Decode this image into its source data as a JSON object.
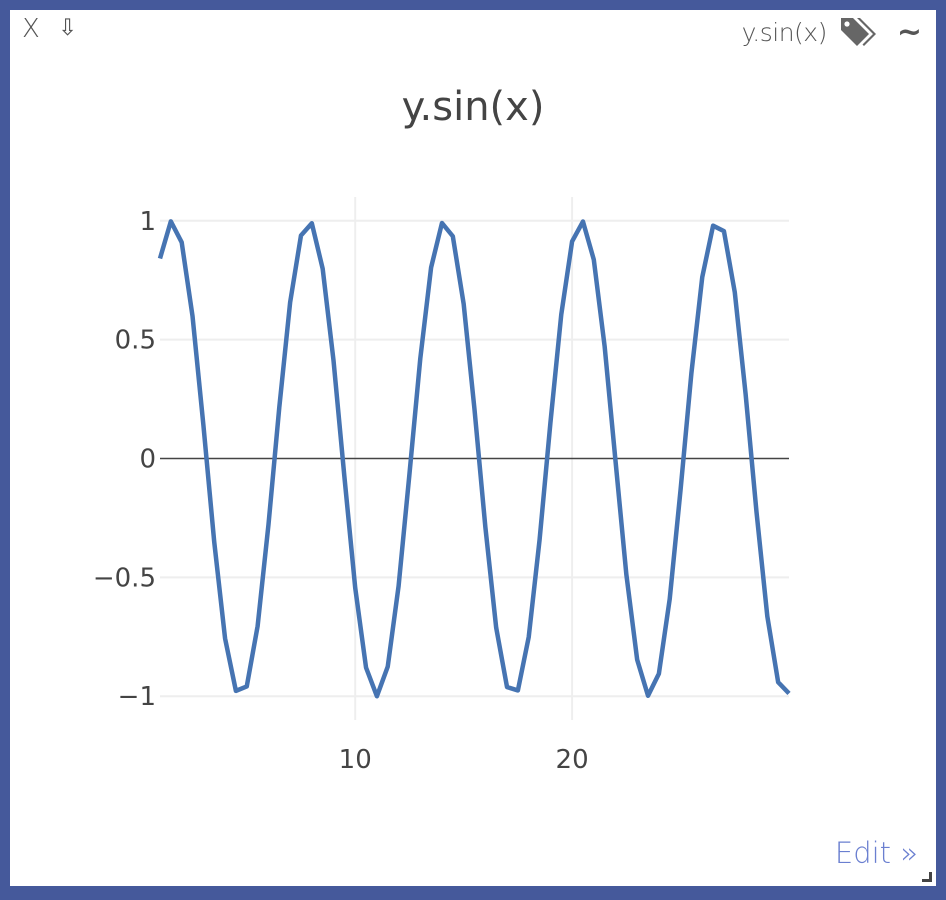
{
  "controls": {
    "close_label": "X",
    "download_label": "⇩",
    "tag_label": "y.sin(x)",
    "tag_icon": "tags-icon",
    "wave_label": "~",
    "edit_label": "Edit »"
  },
  "colors": {
    "frame": "#45599b",
    "line": "#4674b2",
    "grid": "#eeeeee",
    "zero_line": "#444444",
    "text": "#444444",
    "edit_link": "#6a7fd0"
  },
  "chart_data": {
    "type": "line",
    "title": "y.sin(x)",
    "xlabel": "",
    "ylabel": "",
    "xlim": [
      1,
      30
    ],
    "ylim": [
      -1.1,
      1.1
    ],
    "xticks": [
      10,
      20
    ],
    "yticks": [
      1,
      0.5,
      0,
      -0.5,
      -1
    ],
    "ytick_labels": [
      "1",
      "0.5",
      "0",
      "−0.5",
      "−1"
    ],
    "grid": true,
    "legend": "none",
    "series": [
      {
        "function": "sin",
        "x_start": 1,
        "x_end": 30,
        "x_step": 0.5
      }
    ]
  }
}
